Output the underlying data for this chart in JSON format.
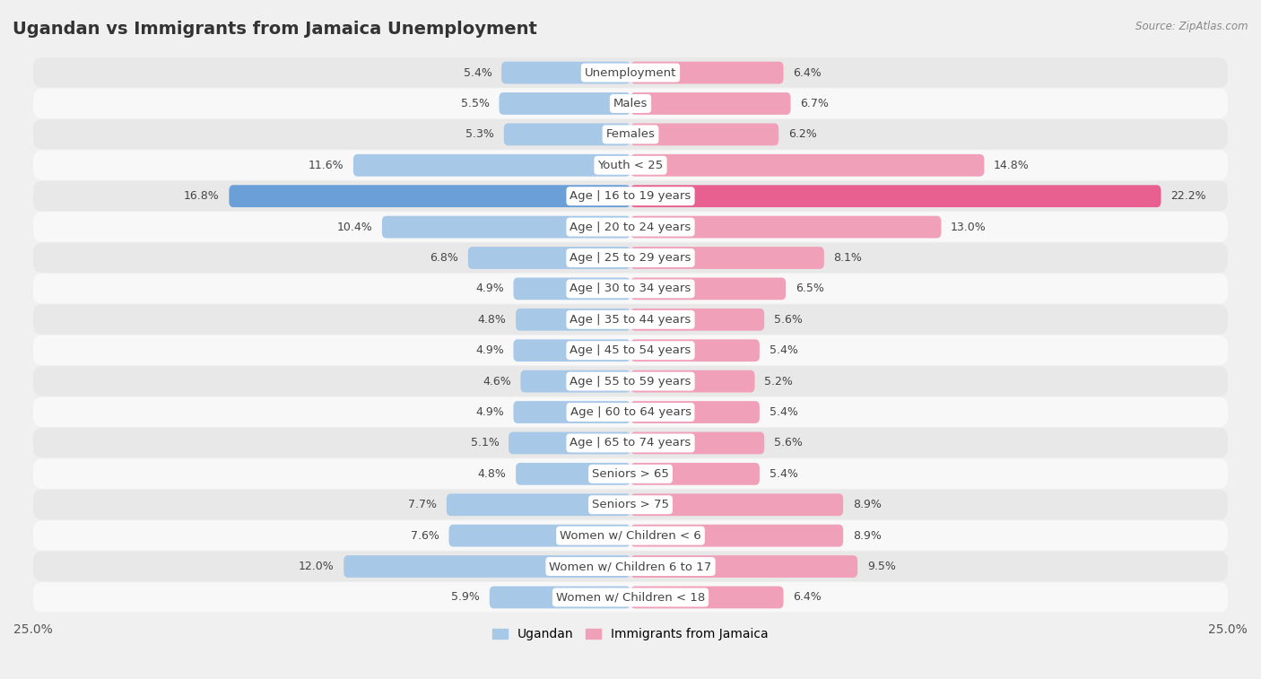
{
  "title": "Ugandan vs Immigrants from Jamaica Unemployment",
  "source": "Source: ZipAtlas.com",
  "categories": [
    "Unemployment",
    "Males",
    "Females",
    "Youth < 25",
    "Age | 16 to 19 years",
    "Age | 20 to 24 years",
    "Age | 25 to 29 years",
    "Age | 30 to 34 years",
    "Age | 35 to 44 years",
    "Age | 45 to 54 years",
    "Age | 55 to 59 years",
    "Age | 60 to 64 years",
    "Age | 65 to 74 years",
    "Seniors > 65",
    "Seniors > 75",
    "Women w/ Children < 6",
    "Women w/ Children 6 to 17",
    "Women w/ Children < 18"
  ],
  "ugandan": [
    5.4,
    5.5,
    5.3,
    11.6,
    16.8,
    10.4,
    6.8,
    4.9,
    4.8,
    4.9,
    4.6,
    4.9,
    5.1,
    4.8,
    7.7,
    7.6,
    12.0,
    5.9
  ],
  "jamaica": [
    6.4,
    6.7,
    6.2,
    14.8,
    22.2,
    13.0,
    8.1,
    6.5,
    5.6,
    5.4,
    5.2,
    5.4,
    5.6,
    5.4,
    8.9,
    8.9,
    9.5,
    6.4
  ],
  "ugandan_color": "#a8c8e8",
  "jamaica_color": "#f0a0b8",
  "highlight_ugandan_color": "#6a9fd8",
  "highlight_jamaica_color": "#e86090",
  "axis_max": 25.0,
  "bg_color": "#f0f0f0",
  "row_color_odd": "#e8e8e8",
  "row_color_even": "#f8f8f8",
  "label_fontsize": 9.5,
  "title_fontsize": 14,
  "legend_fontsize": 10,
  "value_fontsize": 9
}
